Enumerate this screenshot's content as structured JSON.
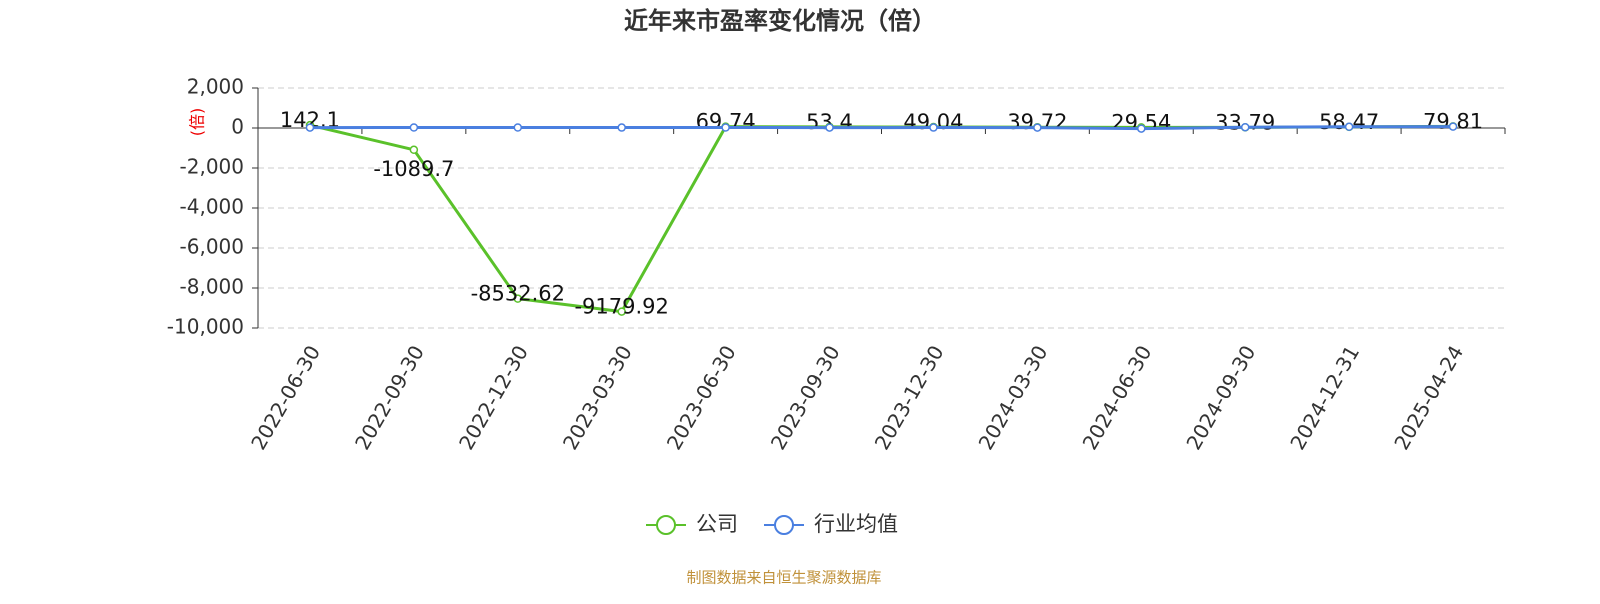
{
  "chart_data": {
    "type": "line",
    "title": "近年来市盈率变化情况（倍）",
    "y_label": "(倍)",
    "source": "制图数据来自恒生聚源数据库",
    "categories": [
      "2022-06-30",
      "2022-09-30",
      "2022-12-30",
      "2023-03-30",
      "2023-06-30",
      "2023-09-30",
      "2023-12-30",
      "2024-03-30",
      "2024-06-30",
      "2024-09-30",
      "2024-12-31",
      "2025-04-24"
    ],
    "series": [
      {
        "name": "公司",
        "color": "#5ac12a",
        "values": [
          142.1,
          -1089.7,
          -8532.62,
          -9179.92,
          69.74,
          53.4,
          49.04,
          39.72,
          29.54,
          33.79,
          58.47,
          79.81
        ],
        "show_labels": true
      },
      {
        "name": "行业均值",
        "color": "#4a7fe0",
        "values": [
          20,
          25,
          25,
          22,
          25,
          20,
          22,
          20,
          -30,
          40,
          60,
          70
        ],
        "show_labels": false
      }
    ],
    "ylim": [
      -10000,
      2000
    ],
    "yticks": [
      {
        "value": 2000,
        "label": "2,000"
      },
      0,
      {
        "value": -2000,
        "label": "-2,000"
      },
      {
        "value": -4000,
        "label": "-4,000"
      },
      {
        "value": -6000,
        "label": "-6,000"
      },
      {
        "value": -8000,
        "label": "-8,000"
      },
      {
        "value": -10000,
        "label": "-10,000"
      }
    ],
    "grid": true
  }
}
